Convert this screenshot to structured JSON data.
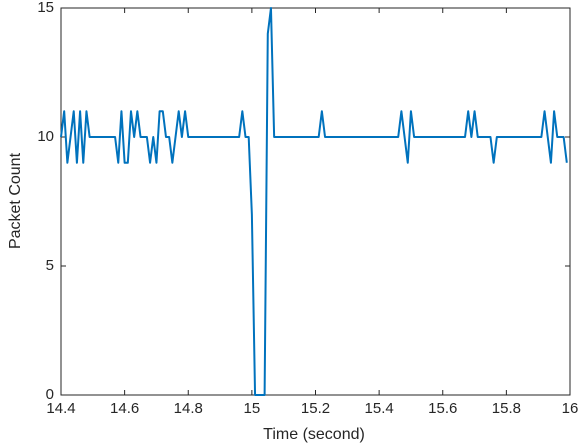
{
  "chart_data": {
    "type": "line",
    "xlabel": "Time (second)",
    "ylabel": "Packet Count",
    "x": [
      14.4,
      14.41,
      14.42,
      14.43,
      14.44,
      14.45,
      14.46,
      14.47,
      14.48,
      14.49,
      14.5,
      14.51,
      14.52,
      14.53,
      14.54,
      14.55,
      14.56,
      14.57,
      14.58,
      14.59,
      14.6,
      14.61,
      14.62,
      14.63,
      14.64,
      14.65,
      14.66,
      14.67,
      14.68,
      14.69,
      14.7,
      14.71,
      14.72,
      14.73,
      14.74,
      14.75,
      14.76,
      14.77,
      14.78,
      14.79,
      14.8,
      14.81,
      14.82,
      14.83,
      14.84,
      14.85,
      14.86,
      14.87,
      14.88,
      14.89,
      14.9,
      14.91,
      14.92,
      14.93,
      14.94,
      14.95,
      14.96,
      14.97,
      14.98,
      14.99,
      15.0,
      15.01,
      15.02,
      15.03,
      15.04,
      15.05,
      15.06,
      15.07,
      15.08,
      15.09,
      15.1,
      15.11,
      15.12,
      15.13,
      15.14,
      15.15,
      15.16,
      15.17,
      15.18,
      15.19,
      15.2,
      15.21,
      15.22,
      15.23,
      15.24,
      15.25,
      15.26,
      15.27,
      15.28,
      15.29,
      15.3,
      15.31,
      15.32,
      15.33,
      15.34,
      15.35,
      15.36,
      15.37,
      15.38,
      15.39,
      15.4,
      15.41,
      15.42,
      15.43,
      15.44,
      15.45,
      15.46,
      15.47,
      15.48,
      15.49,
      15.5,
      15.51,
      15.52,
      15.53,
      15.54,
      15.55,
      15.56,
      15.57,
      15.58,
      15.59,
      15.6,
      15.61,
      15.62,
      15.63,
      15.64,
      15.65,
      15.66,
      15.67,
      15.68,
      15.69,
      15.7,
      15.71,
      15.72,
      15.73,
      15.74,
      15.75,
      15.76,
      15.77,
      15.78,
      15.79,
      15.8,
      15.81,
      15.82,
      15.83,
      15.84,
      15.85,
      15.86,
      15.87,
      15.88,
      15.89,
      15.9,
      15.91,
      15.92,
      15.93,
      15.94,
      15.95,
      15.96,
      15.97,
      15.98,
      15.99
    ],
    "series": [
      {
        "color": "#0072bd",
        "values": [
          10,
          11,
          9,
          10,
          11,
          9,
          11,
          9,
          11,
          10,
          10,
          10,
          10,
          10,
          10,
          10,
          10,
          10,
          9,
          11,
          9,
          9,
          11,
          10,
          11,
          10,
          10,
          10,
          9,
          10,
          9,
          11,
          11,
          10,
          10,
          9,
          10,
          11,
          10,
          11,
          10,
          10,
          10,
          10,
          10,
          10,
          10,
          10,
          10,
          10,
          10,
          10,
          10,
          10,
          10,
          10,
          10,
          11,
          10,
          10,
          7,
          0,
          0,
          0,
          0,
          14,
          15,
          10,
          10,
          10,
          10,
          10,
          10,
          10,
          10,
          10,
          10,
          10,
          10,
          10,
          10,
          10,
          11,
          10,
          10,
          10,
          10,
          10,
          10,
          10,
          10,
          10,
          10,
          10,
          10,
          10,
          10,
          10,
          10,
          10,
          10,
          10,
          10,
          10,
          10,
          10,
          10,
          11,
          10,
          9,
          11,
          10,
          10,
          10,
          10,
          10,
          10,
          10,
          10,
          10,
          10,
          10,
          10,
          10,
          10,
          10,
          10,
          10,
          11,
          10,
          11,
          10,
          10,
          10,
          10,
          10,
          9,
          10,
          10,
          10,
          10,
          10,
          10,
          10,
          10,
          10,
          10,
          10,
          10,
          10,
          10,
          10,
          11,
          10,
          9,
          11,
          10,
          10,
          10,
          9
        ]
      }
    ],
    "xlim": [
      14.4,
      16
    ],
    "xticks": [
      14.4,
      14.6,
      14.8,
      15,
      15.2,
      15.4,
      15.6,
      15.8,
      16
    ],
    "ylim": [
      0,
      15
    ],
    "yticks": [
      0,
      5,
      10,
      15
    ]
  }
}
